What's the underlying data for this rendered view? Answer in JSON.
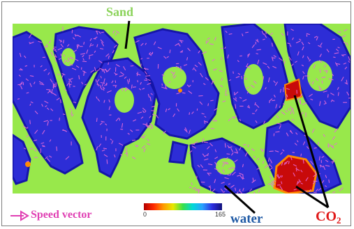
{
  "labels": {
    "sand": "Sand",
    "water": "water",
    "co2": "CO",
    "co2_subscript": "2",
    "speed_vector": "Speed vector"
  },
  "colorbar": {
    "min": "0",
    "max": "165"
  },
  "colors": {
    "sand": "#98e84b",
    "water_deep": "#1515b8",
    "water_mid": "#3d3de6",
    "vector": "#e86ad8",
    "co2": "#c80a0a",
    "co2_edge": "#ff8a00",
    "label_sand": "#8bd35a",
    "label_water": "#1f5aa5",
    "label_co2": "#e01818",
    "label_speed": "#e03fb3"
  }
}
